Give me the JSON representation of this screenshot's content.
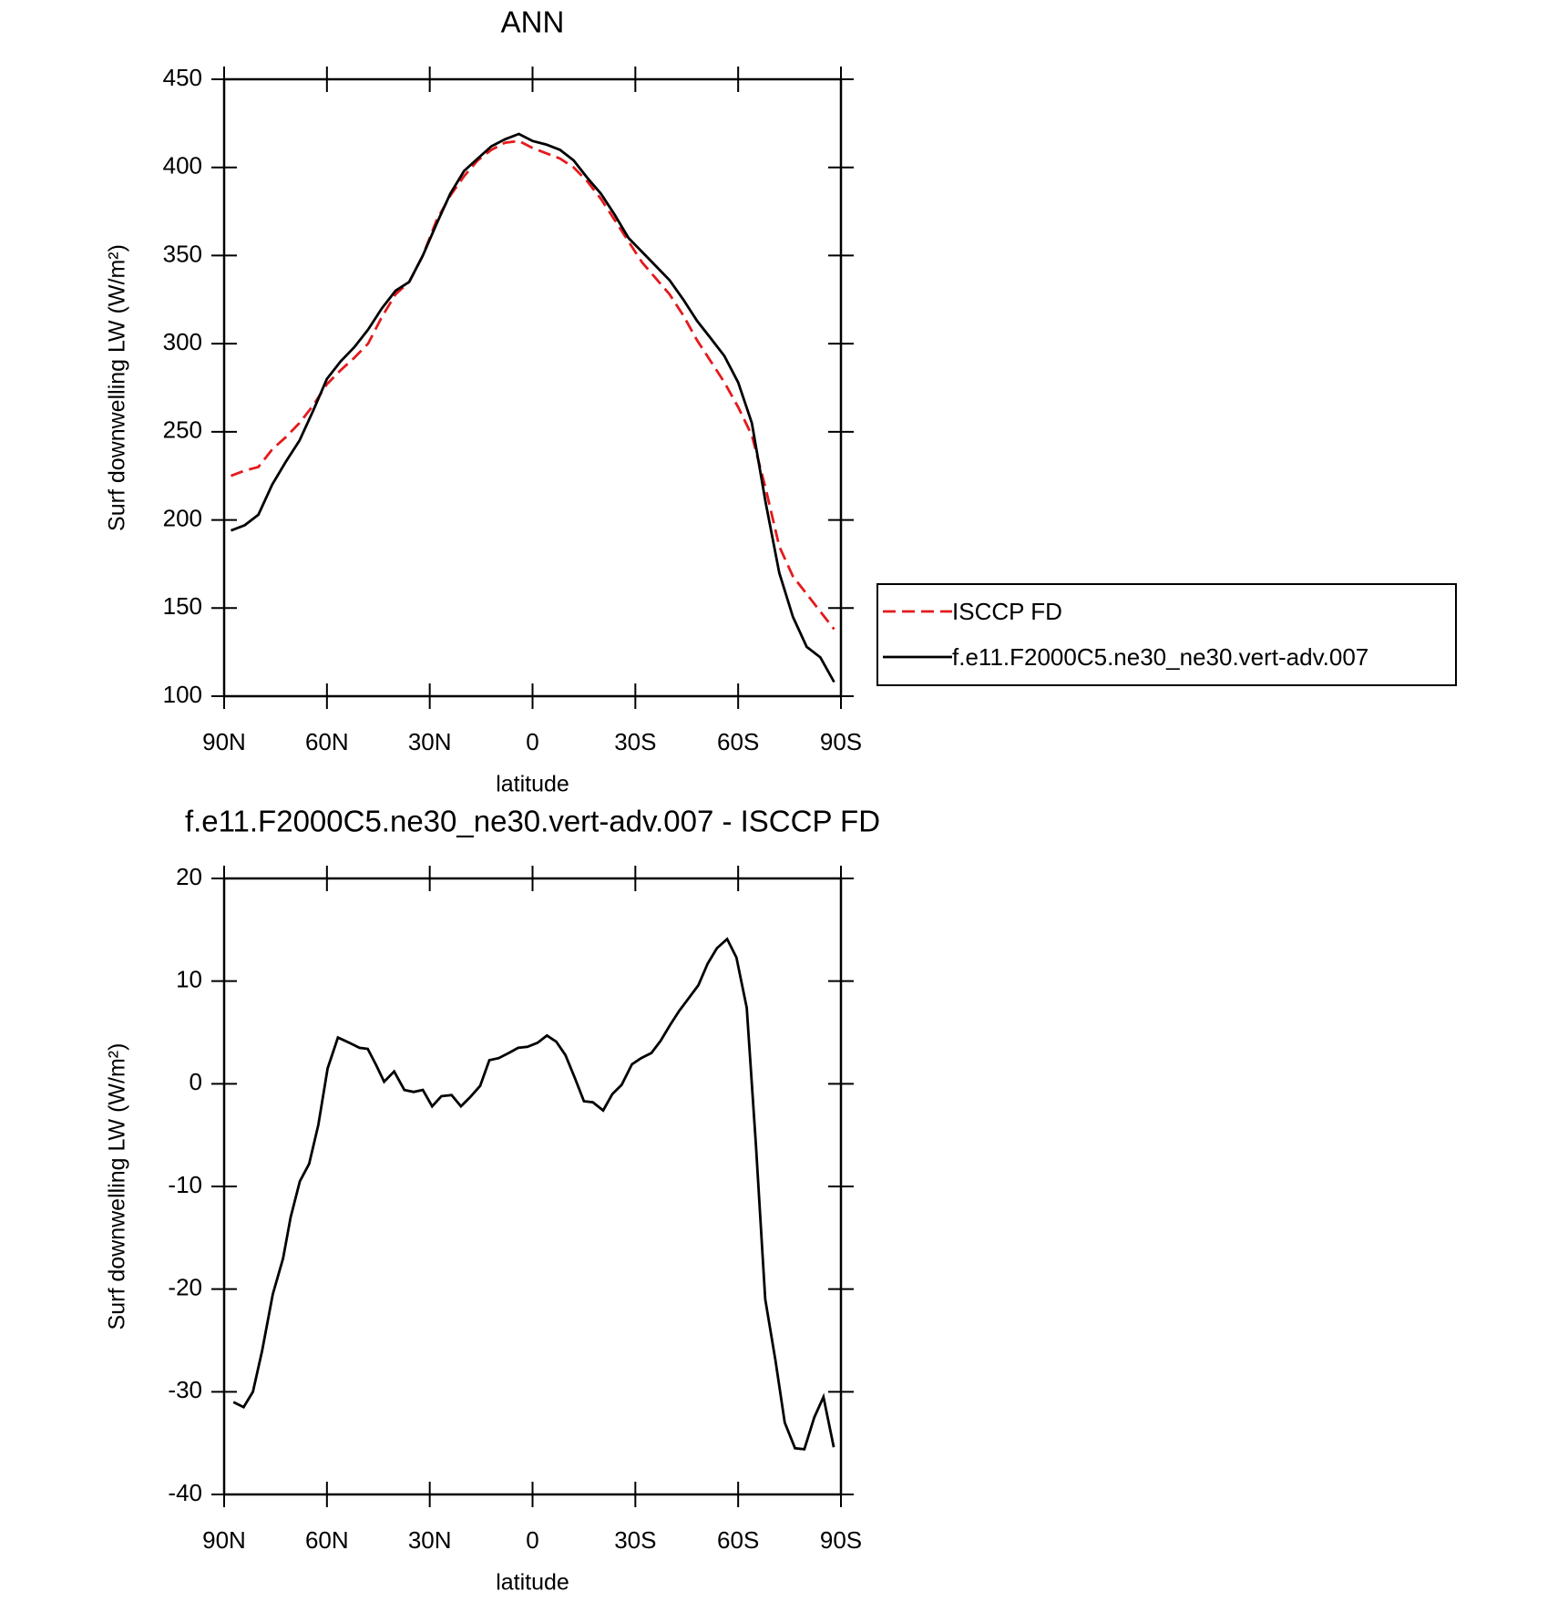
{
  "chart_data": [
    {
      "type": "line",
      "title": "ANN",
      "xlabel": "latitude",
      "ylabel": "Surf downwelling LW (W/m²)",
      "xlim": [
        90,
        -90
      ],
      "xticks": [
        {
          "value": 90,
          "label": "90N"
        },
        {
          "value": 60,
          "label": "60N"
        },
        {
          "value": 30,
          "label": "30N"
        },
        0,
        {
          "value": -30,
          "label": "30S"
        },
        {
          "value": -60,
          "label": "60S"
        },
        {
          "value": -90,
          "label": "90S"
        }
      ],
      "ylim": [
        100,
        450
      ],
      "yticks": [
        100,
        150,
        200,
        250,
        300,
        350,
        400,
        450
      ],
      "legend": "outside right",
      "x": [
        88,
        84,
        80,
        76,
        72,
        68,
        64,
        60,
        56,
        52,
        48,
        44,
        40,
        36,
        32,
        28,
        24,
        20,
        16,
        12,
        8,
        4,
        0,
        -4,
        -8,
        -12,
        -16,
        -20,
        -24,
        -28,
        -32,
        -36,
        -40,
        -44,
        -48,
        -52,
        -56,
        -60,
        -64,
        -68,
        -72,
        -76,
        -80,
        -84,
        -88
      ],
      "series": [
        {
          "name": "ISCCP FD",
          "color": "#e41a1c",
          "dashed": true,
          "values": [
            225,
            228,
            230,
            240,
            247,
            255,
            265,
            277,
            285,
            292,
            300,
            315,
            328,
            335,
            350,
            370,
            384,
            395,
            404,
            410,
            414,
            415,
            411,
            408,
            405,
            400,
            392,
            382,
            370,
            358,
            346,
            337,
            328,
            316,
            302,
            290,
            278,
            264,
            248,
            218,
            185,
            168,
            158,
            148,
            138
          ]
        },
        {
          "name": "f.e11.F2000C5.ne30_ne30.vert-adv.007",
          "color": "#000000",
          "dashed": false,
          "values": [
            194,
            197,
            203,
            220,
            233,
            245,
            262,
            280,
            290,
            298,
            308,
            320,
            330,
            335,
            350,
            368,
            385,
            398,
            405,
            412,
            416,
            419,
            415,
            413,
            410,
            404,
            394,
            385,
            373,
            360,
            352,
            344,
            336,
            325,
            313,
            303,
            293,
            278,
            255,
            210,
            170,
            145,
            128,
            122,
            108
          ]
        }
      ]
    },
    {
      "type": "line",
      "title": "f.e11.F2000C5.ne30_ne30.vert-adv.007 - ISCCP FD",
      "xlabel": "latitude",
      "ylabel": "Surf downwelling LW (W/m²)",
      "xlim": [
        90,
        -90
      ],
      "xticks": [
        {
          "value": 90,
          "label": "90N"
        },
        {
          "value": 60,
          "label": "60N"
        },
        {
          "value": 30,
          "label": "30N"
        },
        0,
        {
          "value": -30,
          "label": "30S"
        },
        {
          "value": -60,
          "label": "60S"
        },
        {
          "value": -90,
          "label": "90S"
        }
      ],
      "ylim": [
        -40,
        20
      ],
      "yticks": [
        -40,
        -30,
        -20,
        -10,
        0,
        10,
        20
      ],
      "x": [
        87.3,
        84.3,
        81.6,
        78.9,
        75.8,
        72.8,
        70.6,
        67.9,
        65.2,
        62.5,
        59.8,
        56.8,
        53.5,
        50.5,
        48.1,
        45.6,
        43.3,
        40.4,
        37.4,
        34.7,
        32.0,
        29.3,
        26.6,
        23.6,
        20.9,
        18.2,
        15.3,
        12.6,
        9.9,
        6.9,
        4.2,
        1.5,
        -1.5,
        -4.2,
        -6.9,
        -9.6,
        -12.3,
        -15.0,
        -17.6,
        -20.6,
        -23.3,
        -26.0,
        -29.0,
        -31.7,
        -34.7,
        -37.4,
        -40.1,
        -42.8,
        -45.5,
        -48.4,
        -51.1,
        -53.8,
        -56.8,
        -59.5,
        -62.5,
        -65.2,
        -67.9,
        -70.9,
        -73.6,
        -76.6,
        -79.3,
        -82.2,
        -84.9,
        -87.9
      ],
      "series": [
        {
          "color": "#000000",
          "dashed": false,
          "values": [
            -31,
            -31.5,
            -30,
            -26,
            -20.5,
            -17,
            -13,
            -9.5,
            -7.8,
            -4,
            1.5,
            4.5,
            4,
            3.5,
            3.4,
            1.8,
            0.2,
            1.2,
            -0.6,
            -0.8,
            -0.6,
            -2.2,
            -1.2,
            -1.1,
            -2.2,
            -1.3,
            -0.2,
            2.3,
            2.5,
            3.0,
            3.5,
            3.6,
            4.0,
            4.7,
            4.1,
            2.8,
            0.6,
            -1.7,
            -1.8,
            -2.6,
            -1,
            -0.1,
            1.9,
            2.5,
            3,
            4.2,
            5.7,
            7.1,
            8.3,
            9.6,
            11.7,
            13.2,
            14.1,
            12.3,
            7.4,
            -6,
            -21,
            -27,
            -33,
            -35.5,
            -35.6,
            -32.5,
            -30.5,
            -35.4
          ]
        }
      ]
    }
  ]
}
